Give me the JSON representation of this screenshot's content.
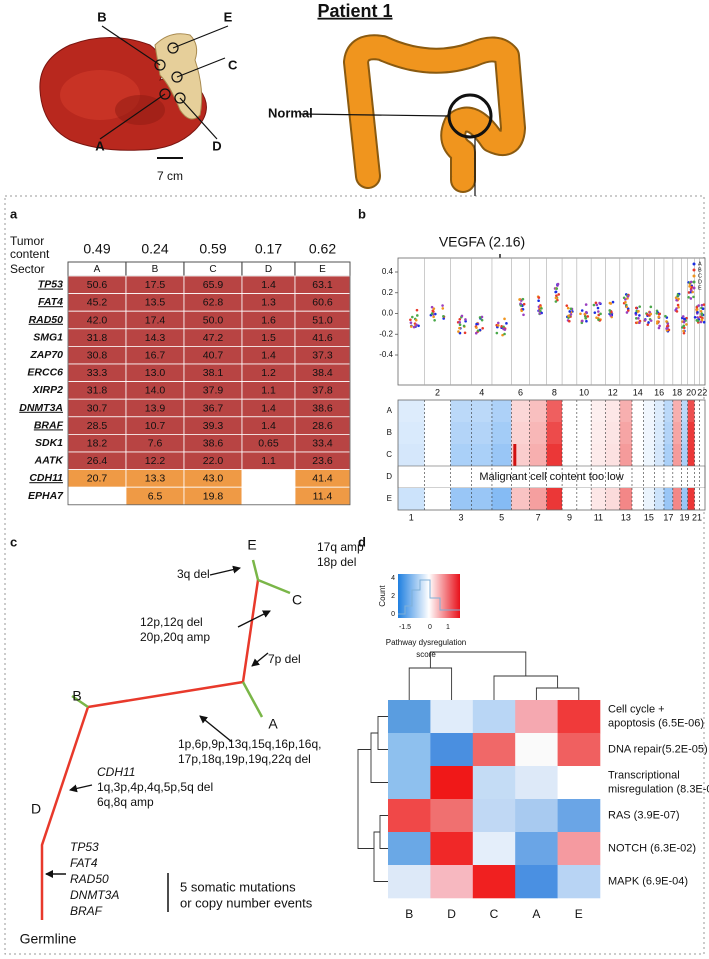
{
  "header": {
    "title": "Patient 1"
  },
  "specimen": {
    "sector_labels": [
      "B",
      "E",
      "C",
      "A",
      "D"
    ],
    "normal_label": "Normal",
    "scale_label": "7 cm"
  },
  "panel_a": {
    "letter": "a",
    "tumor_content_label": [
      "Tumor",
      "content"
    ],
    "sector_label": "Sector",
    "tumor_content": [
      "0.49",
      "0.24",
      "0.59",
      "0.17",
      "0.62"
    ],
    "sectors": [
      "A",
      "B",
      "C",
      "D",
      "E"
    ],
    "rows": [
      {
        "gene": "TP53",
        "underline": true,
        "color": "#b84443",
        "values": [
          "50.6",
          "17.5",
          "65.9",
          "1.4",
          "63.1"
        ]
      },
      {
        "gene": "FAT4",
        "underline": true,
        "color": "#b84443",
        "values": [
          "45.2",
          "13.5",
          "62.8",
          "1.3",
          "60.6"
        ]
      },
      {
        "gene": "RAD50",
        "underline": true,
        "color": "#b84443",
        "values": [
          "42.0",
          "17.4",
          "50.0",
          "1.6",
          "51.0"
        ]
      },
      {
        "gene": "SMG1",
        "underline": false,
        "color": "#b84443",
        "values": [
          "31.8",
          "14.3",
          "47.2",
          "1.5",
          "41.6"
        ]
      },
      {
        "gene": "ZAP70",
        "underline": false,
        "color": "#b84443",
        "values": [
          "30.8",
          "16.7",
          "40.7",
          "1.4",
          "37.3"
        ]
      },
      {
        "gene": "ERCC6",
        "underline": false,
        "color": "#b84443",
        "values": [
          "33.3",
          "13.0",
          "38.1",
          "1.2",
          "38.4"
        ]
      },
      {
        "gene": "XIRP2",
        "underline": false,
        "color": "#b84443",
        "values": [
          "31.8",
          "14.0",
          "37.9",
          "1.1",
          "37.8"
        ]
      },
      {
        "gene": "DNMT3A",
        "underline": true,
        "color": "#b84443",
        "values": [
          "30.7",
          "13.9",
          "36.7",
          "1.4",
          "38.6"
        ]
      },
      {
        "gene": "BRAF",
        "underline": true,
        "color": "#b84443",
        "values": [
          "28.5",
          "10.7",
          "39.3",
          "1.4",
          "28.6"
        ]
      },
      {
        "gene": "SDK1",
        "underline": false,
        "color": "#b84443",
        "values": [
          "18.2",
          "7.6",
          "38.6",
          "0.65",
          "33.4"
        ]
      },
      {
        "gene": "AATK",
        "underline": false,
        "color": "#b84443",
        "values": [
          "26.4",
          "12.2",
          "22.0",
          "1.1",
          "23.6"
        ]
      },
      {
        "gene": "CDH11",
        "underline": true,
        "color": "#ef9a45",
        "values": [
          "20.7",
          "13.3",
          "43.0",
          null,
          "41.4"
        ]
      },
      {
        "gene": "EPHA7",
        "underline": false,
        "color": "#ef9a45",
        "values": [
          null,
          "6.5",
          "19.8",
          null,
          "11.4"
        ]
      }
    ]
  },
  "panel_b": {
    "letter": "b",
    "annotation": "VEGFA (2.16)",
    "yticks": [
      "0.4",
      "0.2",
      "0.0",
      "-0.2",
      "-0.4"
    ],
    "chrom_top": [
      "2",
      "4",
      "6",
      "8",
      "10",
      "12",
      "14",
      "16",
      "18",
      "20",
      "22"
    ],
    "chrom_bottom": [
      "1",
      "3",
      "5",
      "7",
      "9",
      "11",
      "13",
      "15",
      "17",
      "19",
      "21"
    ],
    "rows": [
      "A",
      "B",
      "C",
      "D",
      "E"
    ],
    "legend": [
      "A",
      "B",
      "C",
      "D",
      "E"
    ],
    "note": "Malignant cell content too low"
  },
  "panel_c": {
    "letter": "c",
    "nodes": [
      "E",
      "C",
      "B",
      "A",
      "D",
      "Germline"
    ],
    "events": [
      {
        "lines": [
          "17q amp",
          "18p del"
        ],
        "color": "#7ab648"
      },
      {
        "lines": [
          "3q del"
        ],
        "color": "#7ab648"
      },
      {
        "lines": [
          "12p,12q del",
          "20p,20q amp"
        ],
        "color": "#ef9a45"
      },
      {
        "lines": [
          "7p del"
        ],
        "color": "#7ab648"
      },
      {
        "lines": [
          "1p,6p,9p,13q,15q,16p,16q,",
          "17p,18q,19p,19q,22q del"
        ],
        "color": "#ef9a45"
      },
      {
        "lines": [
          "CDH11",
          "1q,3p,4p,4q,5p,5q del",
          "6q,8q amp"
        ],
        "color": "#ef9a45"
      },
      {
        "lines": [
          "TP53",
          "FAT4",
          "RAD50",
          "DNMT3A",
          "BRAF"
        ],
        "color": "#e8392b"
      }
    ],
    "scale_text": [
      "5 somatic mutations",
      "or copy number events"
    ]
  },
  "panel_d": {
    "letter": "d",
    "key": {
      "count_label": "Count",
      "count_ticks": [
        "4",
        "2",
        "0"
      ],
      "score_ticks": [
        "-1.5",
        "0",
        "1"
      ],
      "title": [
        "Pathway dysregulation",
        "score"
      ]
    },
    "columns": [
      "B",
      "D",
      "C",
      "A",
      "E"
    ],
    "rows": [
      [
        "Cell cycle +",
        "apoptosis (6.5E-06)"
      ],
      [
        "DNA repair(5.2E-05)"
      ],
      [
        "Transcriptional",
        "misregulation (8.3E-03)"
      ],
      [
        "RAS (3.9E-07)"
      ],
      [
        "NOTCH (6.3E-02)"
      ],
      [
        "MAPK (6.9E-04)"
      ]
    ],
    "cell_colors": [
      [
        "#5a9de0",
        "#e0ecfa",
        "#b9d6f5",
        "#f5a8b0",
        "#f03a3a"
      ],
      [
        "#8ec0ee",
        "#4a8fe0",
        "#f06868",
        "#fafafa",
        "#f06060"
      ],
      [
        "#8ec0ee",
        "#f01818",
        "#c4dcf5",
        "#dde9f8",
        "#ffffff"
      ],
      [
        "#f04848",
        "#f07070",
        "#c0d8f4",
        "#a8caf0",
        "#6aa5e6"
      ],
      [
        "#6aa8e6",
        "#f02828",
        "#e4eefa",
        "#6aa5e6",
        "#f59aa0"
      ],
      [
        "#dde9f8",
        "#f7b8c0",
        "#f02020",
        "#4a90e2",
        "#b8d4f4"
      ]
    ]
  }
}
